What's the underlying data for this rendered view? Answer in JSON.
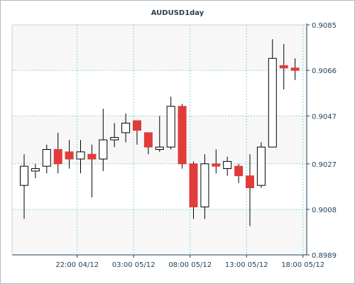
{
  "chart_data": {
    "type": "candlestick",
    "title": "AUDUSD1day",
    "y_axis_position": "right",
    "y_ticks": [
      0.8989,
      0.9008,
      0.9027,
      0.9047,
      0.9066,
      0.9085
    ],
    "y_tick_labels": [
      "0.8989",
      "0.9008",
      "0.9027",
      "0.9047",
      "0.9066",
      "0.9085"
    ],
    "ylim": [
      0.8989,
      0.9085
    ],
    "x_tick_labels": [
      "22:00 04/12",
      "03:00 05/12",
      "08:00 05/12",
      "13:00 05/12",
      "18:00 05/12"
    ],
    "x_tick_candle_index": [
      4.7,
      9.7,
      14.7,
      19.7,
      24.7
    ],
    "grid": true,
    "colors": {
      "bullish_body": "#ffffff",
      "bearish_body": "#e03c3c",
      "outline": "#000000",
      "grid": "#8fd3d3",
      "plot_band_light": "#f7f7f7",
      "plot_band_white": "#ffffff",
      "axis": "#1f3f56"
    },
    "candles": [
      {
        "o": 0.9018,
        "h": 0.9031,
        "l": 0.9004,
        "c": 0.9026
      },
      {
        "o": 0.9024,
        "h": 0.9027,
        "l": 0.9021,
        "c": 0.9025
      },
      {
        "o": 0.9026,
        "h": 0.9035,
        "l": 0.9023,
        "c": 0.9033
      },
      {
        "o": 0.9033,
        "h": 0.904,
        "l": 0.9023,
        "c": 0.9027
      },
      {
        "o": 0.9032,
        "h": 0.9037,
        "l": 0.9025,
        "c": 0.9029
      },
      {
        "o": 0.9029,
        "h": 0.9037,
        "l": 0.9023,
        "c": 0.9032
      },
      {
        "o": 0.9031,
        "h": 0.9035,
        "l": 0.9013,
        "c": 0.9029
      },
      {
        "o": 0.9029,
        "h": 0.905,
        "l": 0.9024,
        "c": 0.9037
      },
      {
        "o": 0.9037,
        "h": 0.9044,
        "l": 0.9034,
        "c": 0.9038
      },
      {
        "o": 0.904,
        "h": 0.9048,
        "l": 0.9036,
        "c": 0.9044
      },
      {
        "o": 0.9045,
        "h": 0.9045,
        "l": 0.9035,
        "c": 0.9041
      },
      {
        "o": 0.904,
        "h": 0.904,
        "l": 0.9031,
        "c": 0.9034
      },
      {
        "o": 0.9033,
        "h": 0.9047,
        "l": 0.9032,
        "c": 0.9034
      },
      {
        "o": 0.9034,
        "h": 0.9055,
        "l": 0.9033,
        "c": 0.9051
      },
      {
        "o": 0.9051,
        "h": 0.9052,
        "l": 0.9025,
        "c": 0.9027
      },
      {
        "o": 0.9027,
        "h": 0.9028,
        "l": 0.9004,
        "c": 0.9009
      },
      {
        "o": 0.9009,
        "h": 0.9031,
        "l": 0.9004,
        "c": 0.9027
      },
      {
        "o": 0.9027,
        "h": 0.9033,
        "l": 0.9023,
        "c": 0.9026
      },
      {
        "o": 0.9025,
        "h": 0.903,
        "l": 0.9022,
        "c": 0.9028
      },
      {
        "o": 0.9026,
        "h": 0.9027,
        "l": 0.9019,
        "c": 0.9022
      },
      {
        "o": 0.9022,
        "h": 0.9031,
        "l": 0.9001,
        "c": 0.9017
      },
      {
        "o": 0.9018,
        "h": 0.9036,
        "l": 0.9017,
        "c": 0.9034
      },
      {
        "o": 0.9034,
        "h": 0.9079,
        "l": 0.9034,
        "c": 0.9071
      },
      {
        "o": 0.9068,
        "h": 0.9077,
        "l": 0.9058,
        "c": 0.9067
      },
      {
        "o": 0.9067,
        "h": 0.9071,
        "l": 0.9062,
        "c": 0.9066
      }
    ]
  }
}
